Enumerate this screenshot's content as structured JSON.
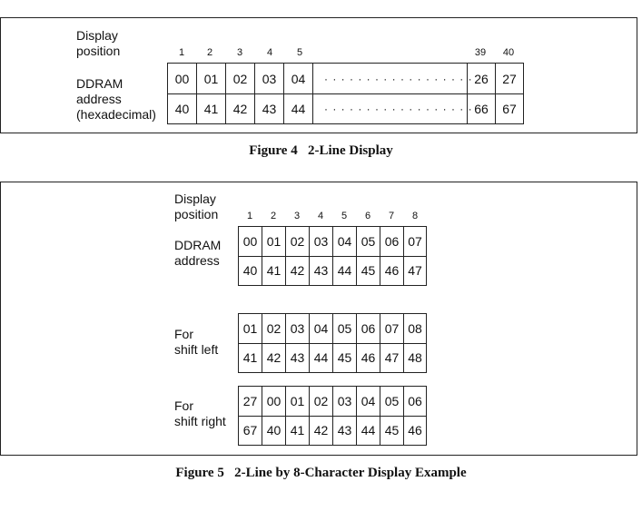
{
  "figure4": {
    "caption": "Figure 4   2-Line Display",
    "position_label": "Display\nposition",
    "address_label": "DDRAM\naddress\n(hexadecimal)",
    "positions_left": [
      "1",
      "2",
      "3",
      "4",
      "5"
    ],
    "positions_right": [
      "39",
      "40"
    ],
    "row1_left": [
      "00",
      "01",
      "02",
      "03",
      "04"
    ],
    "row1_right": [
      "26",
      "27"
    ],
    "row2_left": [
      "40",
      "41",
      "42",
      "43",
      "44"
    ],
    "row2_right": [
      "66",
      "67"
    ],
    "dots": "· · · · · · · · · · · · · · · · · ·"
  },
  "figure5": {
    "caption": "Figure 5   2-Line by 8-Character Display Example",
    "position_label": "Display\nposition",
    "positions": [
      "1",
      "2",
      "3",
      "4",
      "5",
      "6",
      "7",
      "8"
    ],
    "tables": [
      {
        "label": "DDRAM\naddress",
        "row1": [
          "00",
          "01",
          "02",
          "03",
          "04",
          "05",
          "06",
          "07"
        ],
        "row2": [
          "40",
          "41",
          "42",
          "43",
          "44",
          "45",
          "46",
          "47"
        ]
      },
      {
        "label": "For\nshift left",
        "row1": [
          "01",
          "02",
          "03",
          "04",
          "05",
          "06",
          "07",
          "08"
        ],
        "row2": [
          "41",
          "42",
          "43",
          "44",
          "45",
          "46",
          "47",
          "48"
        ]
      },
      {
        "label": "For\nshift right",
        "row1": [
          "27",
          "00",
          "01",
          "02",
          "03",
          "04",
          "05",
          "06"
        ],
        "row2": [
          "67",
          "40",
          "41",
          "42",
          "43",
          "44",
          "45",
          "46"
        ]
      }
    ]
  }
}
